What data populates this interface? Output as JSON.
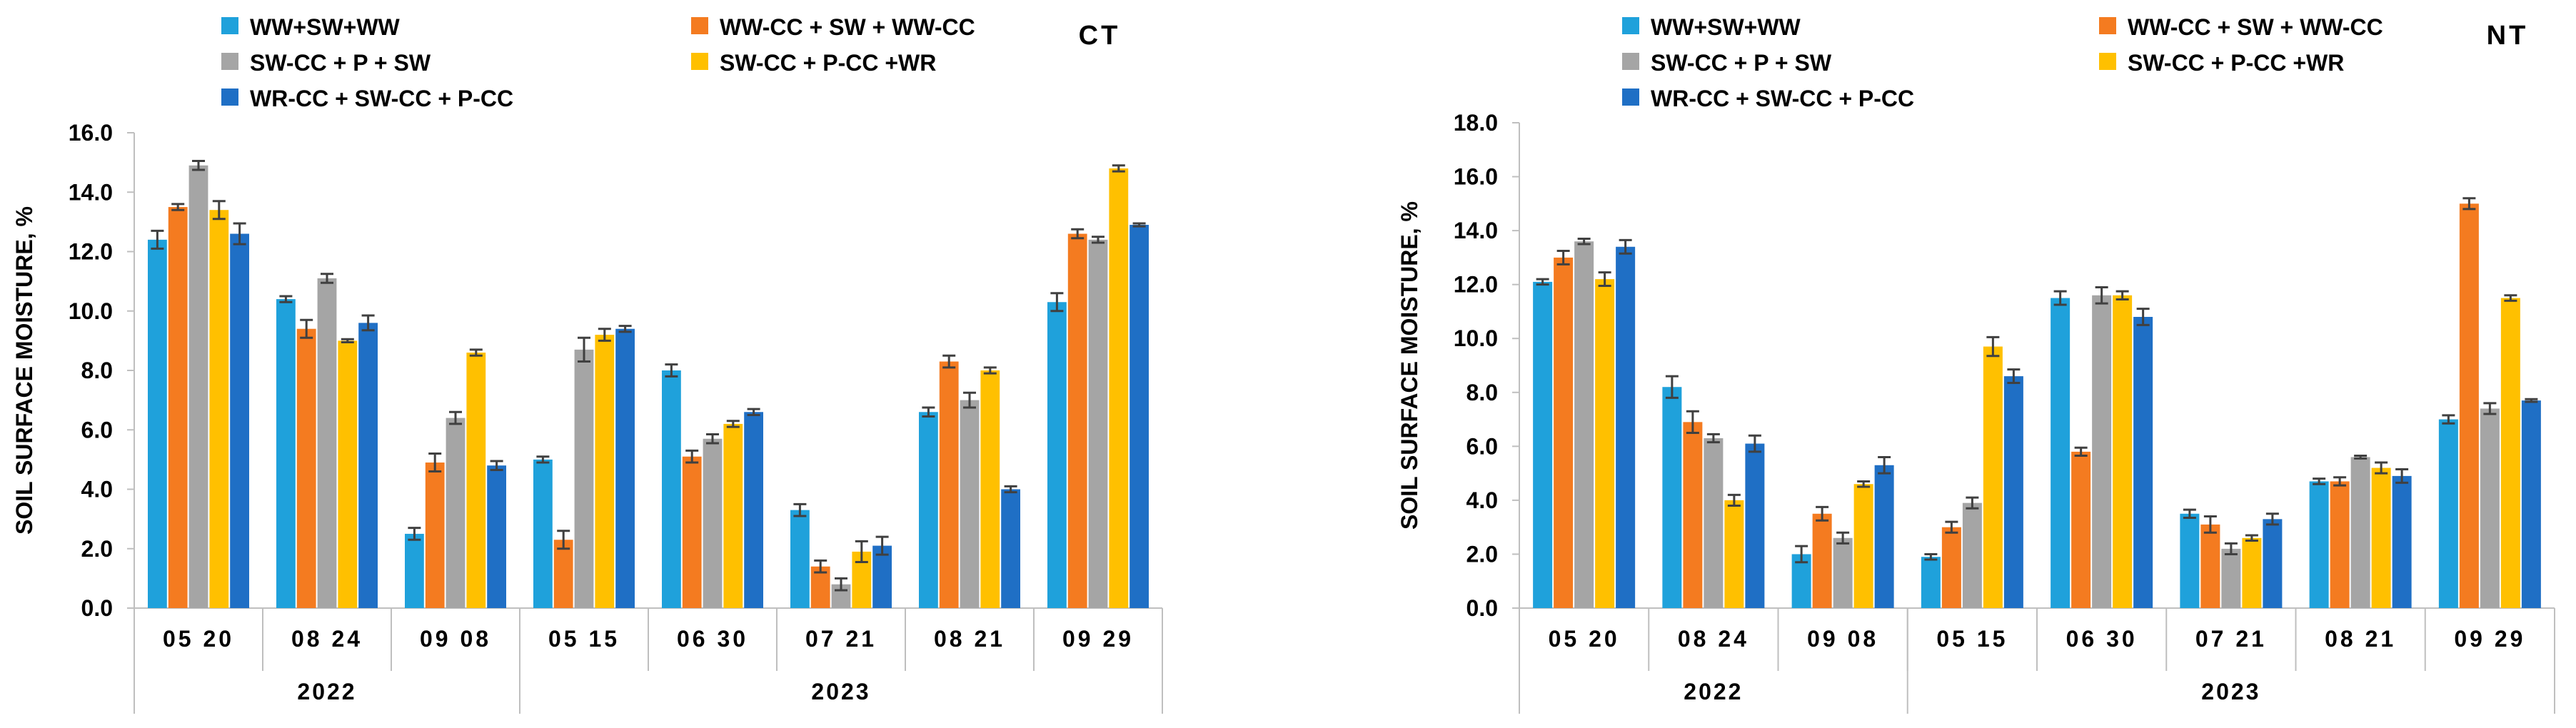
{
  "colors": {
    "WW+SW+WW": "#1FA1DB",
    "WW-CC + SW + WW-CC": "#F47B20",
    "SW-CC + P + SW": "#A5A5A5",
    "SW-CC + P-CC +WR": "#FFC000",
    "WR-CC + SW-CC + P-CC": "#1F6FC5",
    "error_bar": "#404040",
    "axis": "#BFBFBF"
  },
  "chart_data": [
    {
      "type": "bar",
      "panel": "CT",
      "title": "CT",
      "ylabel": "SOIL SURFACE MOISTURE, %",
      "xlabel": "",
      "ylim": [
        0,
        16
      ],
      "ytick_step": 2,
      "ytick_labels": [
        "0.0",
        "2.0",
        "4.0",
        "6.0",
        "8.0",
        "10.0",
        "12.0",
        "14.0",
        "16.0"
      ],
      "grid": false,
      "legend_position": "top",
      "categories": [
        "05 20",
        "08 24",
        "09 08",
        "05 15",
        "06 30",
        "07 21",
        "08 21",
        "09 29"
      ],
      "year_groups": [
        {
          "label": "2022",
          "categories": [
            "05 20",
            "08 24",
            "09 08"
          ]
        },
        {
          "label": "2023",
          "categories": [
            "05 15",
            "06 30",
            "07 21",
            "08 21",
            "09 29"
          ]
        }
      ],
      "series": [
        {
          "name": "WW+SW+WW",
          "values": [
            12.4,
            10.4,
            2.5,
            5.0,
            8.0,
            3.3,
            6.6,
            10.3
          ],
          "errors": [
            0.3,
            0.1,
            0.2,
            0.1,
            0.2,
            0.2,
            0.15,
            0.3
          ]
        },
        {
          "name": "WW-CC + SW + WW-CC",
          "values": [
            13.5,
            9.4,
            4.9,
            2.3,
            5.1,
            1.4,
            8.3,
            12.6
          ],
          "errors": [
            0.1,
            0.3,
            0.3,
            0.3,
            0.2,
            0.2,
            0.2,
            0.15
          ]
        },
        {
          "name": "SW-CC + P + SW",
          "values": [
            14.9,
            11.1,
            6.4,
            8.7,
            5.7,
            0.8,
            7.0,
            12.4
          ],
          "errors": [
            0.15,
            0.15,
            0.2,
            0.4,
            0.15,
            0.2,
            0.25,
            0.1
          ]
        },
        {
          "name": "SW-CC + P-CC +WR",
          "values": [
            13.4,
            9.0,
            8.6,
            9.2,
            6.2,
            1.9,
            8.0,
            14.8
          ],
          "errors": [
            0.3,
            0.05,
            0.1,
            0.2,
            0.1,
            0.35,
            0.1,
            0.1
          ]
        },
        {
          "name": "WR-CC + SW-CC + P-CC",
          "values": [
            12.6,
            9.6,
            4.8,
            9.4,
            6.6,
            2.1,
            4.0,
            12.9
          ],
          "errors": [
            0.35,
            0.25,
            0.15,
            0.1,
            0.1,
            0.3,
            0.1,
            0.05
          ]
        }
      ]
    },
    {
      "type": "bar",
      "panel": "NT",
      "title": "NT",
      "ylabel": "SOIL SURFACE MOISTURE, %",
      "xlabel": "",
      "ylim": [
        0,
        18
      ],
      "ytick_step": 2,
      "ytick_labels": [
        "0.0",
        "2.0",
        "4.0",
        "6.0",
        "8.0",
        "10.0",
        "12.0",
        "14.0",
        "16.0",
        "18.0"
      ],
      "grid": false,
      "legend_position": "top",
      "categories": [
        "05 20",
        "08 24",
        "09 08",
        "05 15",
        "06 30",
        "07 21",
        "08 21",
        "09 29"
      ],
      "year_groups": [
        {
          "label": "2022",
          "categories": [
            "05 20",
            "08 24",
            "09 08"
          ]
        },
        {
          "label": "2023",
          "categories": [
            "05 15",
            "06 30",
            "07 21",
            "08 21",
            "09 29"
          ]
        }
      ],
      "series": [
        {
          "name": "WW+SW+WW",
          "values": [
            12.1,
            8.2,
            2.0,
            1.9,
            11.5,
            3.5,
            4.7,
            7.0
          ],
          "errors": [
            0.1,
            0.4,
            0.3,
            0.1,
            0.25,
            0.15,
            0.1,
            0.15
          ]
        },
        {
          "name": "WW-CC + SW + WW-CC",
          "values": [
            13.0,
            6.9,
            3.5,
            3.0,
            5.8,
            3.1,
            4.7,
            15.0
          ],
          "errors": [
            0.25,
            0.4,
            0.25,
            0.2,
            0.15,
            0.3,
            0.15,
            0.2
          ]
        },
        {
          "name": "SW-CC + P + SW",
          "values": [
            13.6,
            6.3,
            2.6,
            3.9,
            11.6,
            2.2,
            5.6,
            7.4
          ],
          "errors": [
            0.1,
            0.15,
            0.2,
            0.2,
            0.3,
            0.2,
            0.05,
            0.2
          ]
        },
        {
          "name": "SW-CC + P-CC +WR",
          "values": [
            12.2,
            4.0,
            4.6,
            9.7,
            11.6,
            2.6,
            5.2,
            11.5
          ],
          "errors": [
            0.25,
            0.2,
            0.1,
            0.35,
            0.15,
            0.1,
            0.2,
            0.1
          ]
        },
        {
          "name": "WR-CC + SW-CC + P-CC",
          "values": [
            13.4,
            6.1,
            5.3,
            8.6,
            10.8,
            3.3,
            4.9,
            7.7
          ],
          "errors": [
            0.25,
            0.3,
            0.3,
            0.25,
            0.3,
            0.2,
            0.25,
            0.05
          ]
        }
      ]
    }
  ]
}
